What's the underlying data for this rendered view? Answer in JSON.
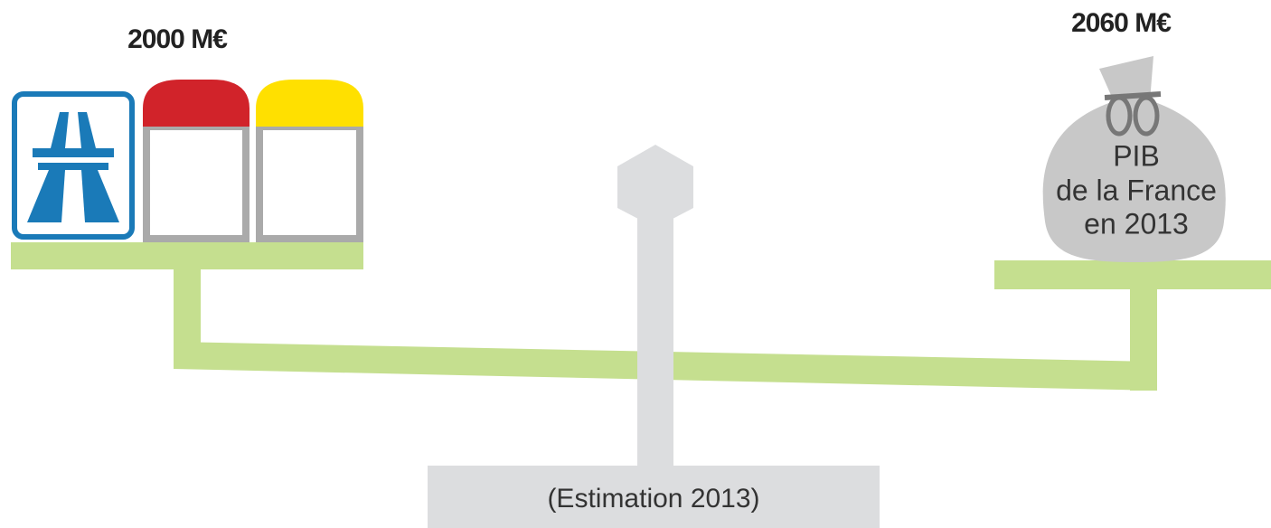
{
  "left": {
    "label": "2000 M€"
  },
  "right": {
    "label": "2060 M€",
    "bag_lines": [
      "PIB",
      "de la France",
      "en 2013"
    ]
  },
  "base": {
    "caption": "(Estimation 2013)"
  }
}
